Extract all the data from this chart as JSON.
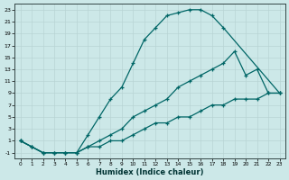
{
  "xlabel": "Humidex (Indice chaleur)",
  "bg_color": "#cce8e8",
  "grid_color": "#b8d4d4",
  "line_color": "#006666",
  "xlim_min": -0.5,
  "xlim_max": 23.5,
  "ylim_min": -2,
  "ylim_max": 24,
  "xticks": [
    0,
    1,
    2,
    3,
    4,
    5,
    6,
    7,
    8,
    9,
    10,
    11,
    12,
    13,
    14,
    15,
    16,
    17,
    18,
    19,
    20,
    21,
    22,
    23
  ],
  "yticks": [
    -1,
    1,
    3,
    5,
    7,
    9,
    11,
    13,
    15,
    17,
    19,
    21,
    23
  ],
  "curve_top": {
    "x": [
      0,
      1,
      2,
      3,
      4,
      5,
      6,
      7,
      8,
      9,
      10,
      11,
      12,
      13,
      14,
      15,
      16,
      17,
      18,
      23
    ],
    "y": [
      1,
      0,
      -1,
      -1,
      -1,
      -1,
      2,
      5,
      8,
      10,
      14,
      18,
      20,
      22,
      22.5,
      23,
      23,
      22,
      20,
      9
    ]
  },
  "curve_mid": {
    "x": [
      0,
      1,
      2,
      3,
      4,
      5,
      6,
      7,
      8,
      9,
      10,
      11,
      12,
      13,
      14,
      15,
      16,
      17,
      18,
      19,
      20,
      21,
      22,
      23
    ],
    "y": [
      1,
      0,
      -1,
      -1,
      -1,
      -1,
      0,
      1,
      2,
      3,
      5,
      6,
      7,
      8,
      10,
      11,
      12,
      13,
      14,
      16,
      12,
      13,
      9,
      9
    ]
  },
  "curve_bot": {
    "x": [
      0,
      1,
      2,
      3,
      4,
      5,
      6,
      7,
      8,
      9,
      10,
      11,
      12,
      13,
      14,
      15,
      16,
      17,
      18,
      19,
      20,
      21,
      22,
      23
    ],
    "y": [
      1,
      0,
      -1,
      -1,
      -1,
      -1,
      0,
      0,
      1,
      1,
      2,
      3,
      4,
      4,
      5,
      5,
      6,
      7,
      7,
      8,
      8,
      8,
      9,
      9
    ]
  }
}
